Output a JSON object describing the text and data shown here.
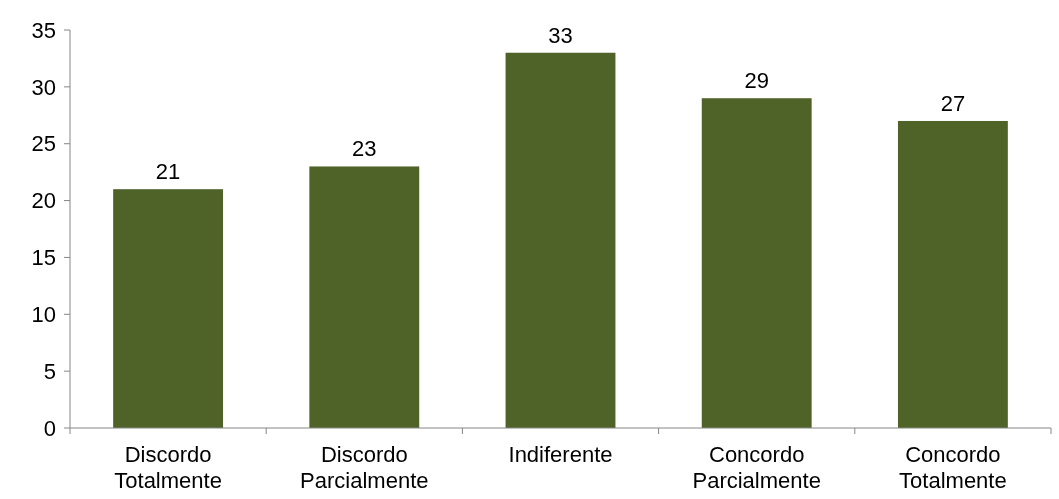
{
  "chart_data": {
    "type": "bar",
    "categories": [
      "Discordo Totalmente",
      "Discordo Parcialmente",
      "Indiferente",
      "Concordo Parcialmente",
      "Concordo Totalmente"
    ],
    "values": [
      21,
      23,
      33,
      29,
      27
    ],
    "color": "#4f6228",
    "ylim": [
      0,
      35
    ],
    "yticks": [
      0,
      5,
      10,
      15,
      20,
      25,
      30,
      35
    ],
    "grid": false,
    "data_labels": true
  }
}
